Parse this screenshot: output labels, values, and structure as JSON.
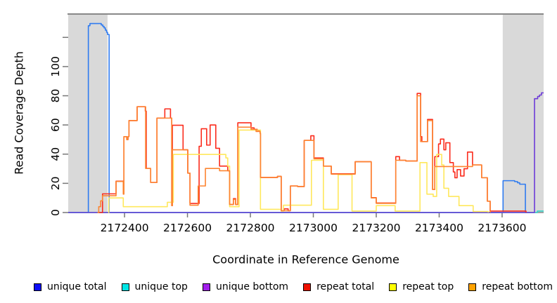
{
  "chart_data": {
    "type": "line",
    "subtype": "step-coverage",
    "title": "",
    "xlabel": "Coordinate in Reference Genome",
    "ylabel": "Read Coverage Depth",
    "xlim": [
      2172221,
      2173732
    ],
    "ylim": [
      0,
      136
    ],
    "x_ticks": [
      2172400,
      2172600,
      2172800,
      2173000,
      2173200,
      2173400,
      2173600
    ],
    "y_ticks_labeled": [
      0,
      20,
      40,
      60,
      80,
      100
    ],
    "y_ticks_unlabeled": [
      120
    ],
    "grid": "off",
    "legend_position": "bottom",
    "background_color": "#ffffff",
    "band_color": "#d9d9d9",
    "frame_color": "#888888",
    "shaded_regions": [
      {
        "x0": 2172221,
        "x1": 2172346
      },
      {
        "x0": 2173602,
        "x1": 2173732
      }
    ],
    "series": [
      {
        "name": "unique-total",
        "label": "unique total",
        "legend_color": "#0d0df5",
        "line_color": "#2f7bf0",
        "points": [
          [
            2172221,
            0
          ],
          [
            2172284,
            0
          ],
          [
            2172285,
            128
          ],
          [
            2172290,
            129.5
          ],
          [
            2172322,
            129.5
          ],
          [
            2172326,
            128.5
          ],
          [
            2172331,
            127.5
          ],
          [
            2172335,
            126.5
          ],
          [
            2172339,
            125
          ],
          [
            2172343,
            123.5
          ],
          [
            2172346,
            122
          ],
          [
            2172350,
            122
          ],
          [
            2172351,
            0
          ],
          [
            2173602,
            0
          ],
          [
            2173603,
            21.8
          ],
          [
            2173636,
            21.8
          ],
          [
            2173640,
            21.2
          ],
          [
            2173649,
            20.4
          ],
          [
            2173656,
            19.4
          ],
          [
            2173672,
            19.4
          ],
          [
            2173674,
            0
          ],
          [
            2173690,
            0
          ]
        ]
      },
      {
        "name": "unique-top",
        "label": "unique top",
        "legend_color": "#00e5e5",
        "line_color": "#35d3c9",
        "points": [
          [
            2172221,
            0
          ],
          [
            2173710,
            0
          ],
          [
            2173712,
            1
          ],
          [
            2173732,
            1
          ]
        ]
      },
      {
        "name": "unique-bottom",
        "label": "unique bottom",
        "legend_color": "#a21fec",
        "line_color": "#6c3bd8",
        "points": [
          [
            2172221,
            0
          ],
          [
            2173702,
            0
          ],
          [
            2173703,
            78
          ],
          [
            2173713,
            79.5
          ],
          [
            2173719,
            80.5
          ],
          [
            2173725,
            82
          ],
          [
            2173732,
            82
          ]
        ]
      },
      {
        "name": "repeat-total",
        "label": "repeat total",
        "legend_color": "#ee1100",
        "line_color": "#fb2c1d",
        "points": [
          [
            2172316,
            0
          ],
          [
            2172330,
            12.8
          ],
          [
            2172373,
            21.5
          ],
          [
            2172396,
            12.8
          ],
          [
            2172398,
            52
          ],
          [
            2172407,
            50
          ],
          [
            2172411,
            52
          ],
          [
            2172414,
            63
          ],
          [
            2172440,
            72.5
          ],
          [
            2172466,
            69.5
          ],
          [
            2172469,
            30.2
          ],
          [
            2172483,
            20.6
          ],
          [
            2172503,
            64.7
          ],
          [
            2172528,
            71
          ],
          [
            2172546,
            64.7
          ],
          [
            2172550,
            4.7
          ],
          [
            2172552,
            59.8
          ],
          [
            2172586,
            43
          ],
          [
            2172601,
            27
          ],
          [
            2172608,
            6.2
          ],
          [
            2172637,
            45.4
          ],
          [
            2172644,
            57.4
          ],
          [
            2172661,
            46.2
          ],
          [
            2172672,
            60
          ],
          [
            2172690,
            44
          ],
          [
            2172702,
            31.8
          ],
          [
            2172728,
            28.6
          ],
          [
            2172734,
            5.5
          ],
          [
            2172746,
            9.5
          ],
          [
            2172753,
            5.5
          ],
          [
            2172760,
            61.5
          ],
          [
            2172802,
            58
          ],
          [
            2172812,
            57
          ],
          [
            2172822,
            55.8
          ],
          [
            2172831,
            54.5
          ],
          [
            2172832,
            24
          ],
          [
            2172886,
            24.8
          ],
          [
            2172898,
            1.2
          ],
          [
            2172907,
            2.5
          ],
          [
            2172920,
            1.2
          ],
          [
            2172927,
            18.2
          ],
          [
            2172950,
            17.8
          ],
          [
            2172971,
            49.4
          ],
          [
            2172992,
            52.6
          ],
          [
            2173002,
            37.4
          ],
          [
            2173032,
            31.8
          ],
          [
            2173057,
            26.5
          ],
          [
            2173133,
            34.8
          ],
          [
            2173184,
            10.2
          ],
          [
            2173200,
            6.5
          ],
          [
            2173262,
            38.3
          ],
          [
            2173274,
            35.8
          ],
          [
            2173294,
            35.3
          ],
          [
            2173330,
            81.6
          ],
          [
            2173341,
            52
          ],
          [
            2173345,
            48.6
          ],
          [
            2173361,
            48.6
          ],
          [
            2173363,
            63.8
          ],
          [
            2173379,
            15.8
          ],
          [
            2173386,
            38.3
          ],
          [
            2173398,
            47
          ],
          [
            2173404,
            50.3
          ],
          [
            2173415,
            43
          ],
          [
            2173421,
            47.8
          ],
          [
            2173434,
            34.2
          ],
          [
            2173445,
            27.8
          ],
          [
            2173450,
            23.8
          ],
          [
            2173457,
            29.4
          ],
          [
            2173468,
            25
          ],
          [
            2173479,
            30
          ],
          [
            2173490,
            41.4
          ],
          [
            2173506,
            32.6
          ],
          [
            2173535,
            23.9
          ],
          [
            2173553,
            7.8
          ],
          [
            2173562,
            1
          ],
          [
            2173674,
            1
          ],
          [
            2173676,
            0
          ]
        ]
      },
      {
        "name": "repeat-top",
        "label": "repeat top",
        "legend_color": "#ffff00",
        "line_color": "#ffe85c",
        "points": [
          [
            2172348,
            0
          ],
          [
            2172350,
            10
          ],
          [
            2172394,
            10
          ],
          [
            2172396,
            4
          ],
          [
            2172460,
            4
          ],
          [
            2172522,
            4
          ],
          [
            2172536,
            7
          ],
          [
            2172553,
            7
          ],
          [
            2172555,
            39.8
          ],
          [
            2172715,
            39.8
          ],
          [
            2172722,
            37.4
          ],
          [
            2172728,
            31.8
          ],
          [
            2172734,
            4
          ],
          [
            2172758,
            4
          ],
          [
            2172764,
            56.5
          ],
          [
            2172829,
            56.5
          ],
          [
            2172832,
            2.2
          ],
          [
            2172898,
            1
          ],
          [
            2172905,
            5
          ],
          [
            2172966,
            5
          ],
          [
            2172994,
            35.8
          ],
          [
            2173032,
            2.2
          ],
          [
            2173079,
            26
          ],
          [
            2173121,
            26
          ],
          [
            2173123,
            1
          ],
          [
            2173198,
            1
          ],
          [
            2173200,
            4.7
          ],
          [
            2173258,
            4.7
          ],
          [
            2173260,
            1
          ],
          [
            2173339,
            34.2
          ],
          [
            2173361,
            12.6
          ],
          [
            2173381,
            11
          ],
          [
            2173392,
            39.8
          ],
          [
            2173408,
            32.6
          ],
          [
            2173415,
            16.6
          ],
          [
            2173430,
            11
          ],
          [
            2173463,
            4.7
          ],
          [
            2173508,
            0.7
          ],
          [
            2173553,
            0.7
          ],
          [
            2173556,
            0
          ]
        ]
      },
      {
        "name": "repeat-bottom",
        "label": "repeat bottom",
        "legend_color": "#ffa200",
        "line_color": "#fd8531",
        "points": [
          [
            2172314,
            0
          ],
          [
            2172318,
            4
          ],
          [
            2172324,
            8
          ],
          [
            2172330,
            11.5
          ],
          [
            2172373,
            21.3
          ],
          [
            2172396,
            12.6
          ],
          [
            2172398,
            52
          ],
          [
            2172407,
            50
          ],
          [
            2172411,
            52
          ],
          [
            2172414,
            63
          ],
          [
            2172440,
            72.5
          ],
          [
            2172467,
            30.2
          ],
          [
            2172483,
            20.6
          ],
          [
            2172503,
            64.7
          ],
          [
            2172546,
            64.7
          ],
          [
            2172550,
            4.7
          ],
          [
            2172552,
            43
          ],
          [
            2172601,
            27
          ],
          [
            2172608,
            5
          ],
          [
            2172634,
            18.2
          ],
          [
            2172657,
            30.2
          ],
          [
            2172702,
            28.6
          ],
          [
            2172734,
            5.5
          ],
          [
            2172746,
            9
          ],
          [
            2172753,
            5.5
          ],
          [
            2172760,
            58.5
          ],
          [
            2172802,
            57
          ],
          [
            2172818,
            55.5
          ],
          [
            2172831,
            54
          ],
          [
            2172832,
            24
          ],
          [
            2172886,
            24.8
          ],
          [
            2172898,
            1.2
          ],
          [
            2172927,
            18.2
          ],
          [
            2172950,
            17.8
          ],
          [
            2172971,
            49.4
          ],
          [
            2173002,
            36.8
          ],
          [
            2173032,
            31.8
          ],
          [
            2173057,
            26.3
          ],
          [
            2173133,
            34.8
          ],
          [
            2173184,
            10
          ],
          [
            2173200,
            6.3
          ],
          [
            2173262,
            35.8
          ],
          [
            2173294,
            35.3
          ],
          [
            2173330,
            80
          ],
          [
            2173341,
            48.6
          ],
          [
            2173361,
            48.6
          ],
          [
            2173363,
            63
          ],
          [
            2173379,
            15.8
          ],
          [
            2173386,
            31.5
          ],
          [
            2173506,
            32.6
          ],
          [
            2173535,
            23.9
          ],
          [
            2173553,
            7.8
          ],
          [
            2173562,
            0
          ]
        ]
      }
    ]
  }
}
